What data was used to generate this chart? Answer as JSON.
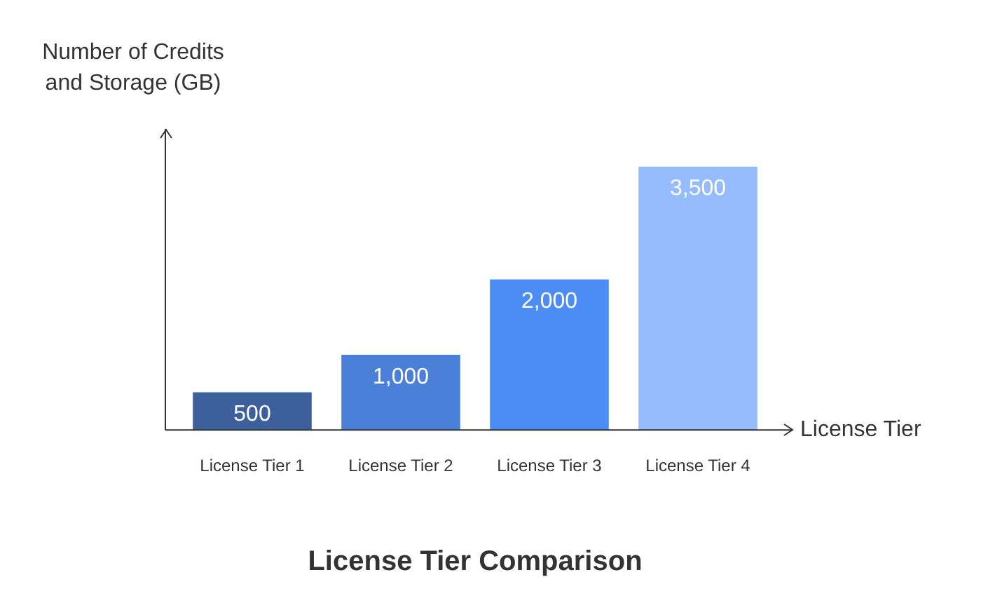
{
  "chart_data": {
    "type": "bar",
    "title": "License Tier Comparison",
    "xlabel": "License Tier",
    "ylabel": "Number of Credits and Storage (GB)",
    "categories": [
      "License Tier 1",
      "License Tier 2",
      "License Tier 3",
      "License Tier 4"
    ],
    "values": [
      500,
      1000,
      2000,
      3500
    ],
    "colors": [
      "#3d5f9c",
      "#4b80d8",
      "#4b8cf5",
      "#94bcfc"
    ],
    "value_labels": [
      "500",
      "1,000",
      "2,000",
      "3,500"
    ],
    "grid": false,
    "legend": false
  }
}
